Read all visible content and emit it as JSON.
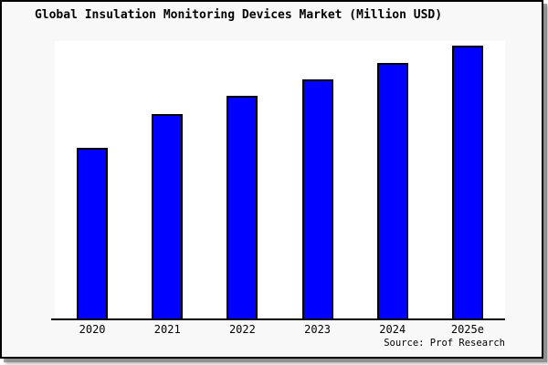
{
  "chart_data": {
    "type": "bar",
    "title": "Global Insulation Monitoring Devices Market (Million USD)",
    "categories": [
      "2020",
      "2021",
      "2022",
      "2023",
      "2024",
      "2025e"
    ],
    "values": [
      188,
      225,
      245,
      263,
      281,
      300
    ],
    "xlabel": "",
    "ylabel": "",
    "ylim": [
      0,
      305
    ],
    "y_axis_labeled": false,
    "grid": false,
    "legend": false,
    "bar_color": "#0000ff",
    "bar_border_color": "#000000",
    "source": "Source: Prof Research"
  },
  "colors": {
    "page_background": "#ffffff",
    "canvas_background": "#f8f8f8",
    "plot_background": "#ffffff",
    "frame_border": "#000000",
    "text": "#000000"
  }
}
